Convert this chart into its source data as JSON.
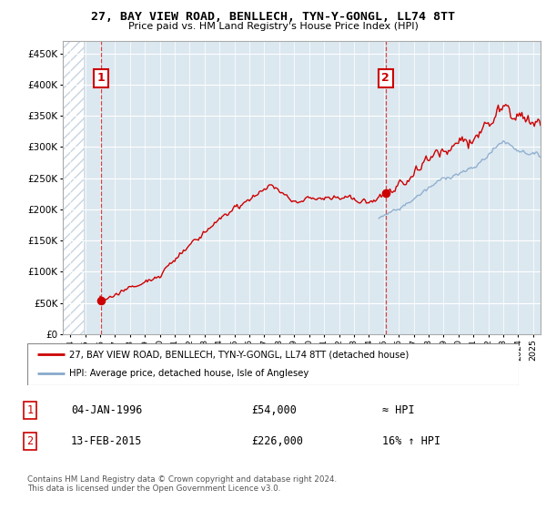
{
  "title": "27, BAY VIEW ROAD, BENLLECH, TYN-Y-GONGL, LL74 8TT",
  "subtitle": "Price paid vs. HM Land Registry's House Price Index (HPI)",
  "xlim": [
    1993.5,
    2025.5
  ],
  "ylim": [
    0,
    470000
  ],
  "yticks": [
    0,
    50000,
    100000,
    150000,
    200000,
    250000,
    300000,
    350000,
    400000,
    450000
  ],
  "ytick_labels": [
    "£0",
    "£50K",
    "£100K",
    "£150K",
    "£200K",
    "£250K",
    "£300K",
    "£350K",
    "£400K",
    "£450K"
  ],
  "sale1_year": 1996.04,
  "sale1_price": 54000,
  "sale2_year": 2015.12,
  "sale2_price": 226000,
  "sale_color": "#cc0000",
  "hpi_color": "#88aacc",
  "legend_line1": "27, BAY VIEW ROAD, BENLLECH, TYN-Y-GONGL, LL74 8TT (detached house)",
  "legend_line2": "HPI: Average price, detached house, Isle of Anglesey",
  "table_row1": [
    "1",
    "04-JAN-1996",
    "£54,000",
    "≈ HPI"
  ],
  "table_row2": [
    "2",
    "13-FEB-2015",
    "£226,000",
    "16% ↑ HPI"
  ],
  "footer": "Contains HM Land Registry data © Crown copyright and database right 2024.\nThis data is licensed under the Open Government Licence v3.0.",
  "bg_hatch_color": "#c8d4e0",
  "bg_plot_color": "#dce8f0"
}
